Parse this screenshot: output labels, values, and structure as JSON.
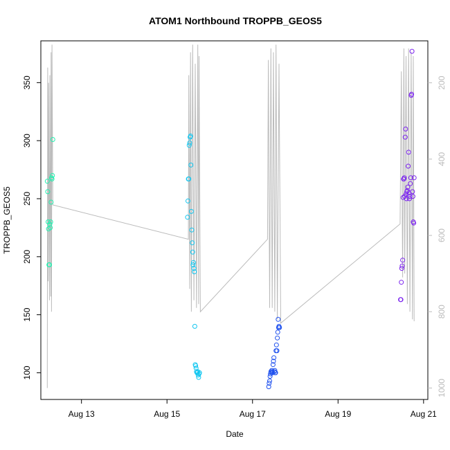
{
  "chart_data": {
    "type": "scatter",
    "title": "ATOM1 Northbound TROPPB_GEOS5",
    "xlabel": "Date",
    "ylabel": "TROPPB_GEOS5",
    "x_range_days": [
      12.05,
      21.1
    ],
    "ylim": [
      77,
      386
    ],
    "x_ticks": [
      {
        "label": "Aug 13",
        "value": 13
      },
      {
        "label": "Aug 15",
        "value": 15
      },
      {
        "label": "Aug 17",
        "value": 17
      },
      {
        "label": "Aug 19",
        "value": 19
      },
      {
        "label": "Aug 21",
        "value": 21
      }
    ],
    "y_ticks": [
      100,
      150,
      200,
      250,
      300,
      350
    ],
    "right_axis": {
      "ticks": [
        200,
        400,
        600,
        800,
        1000
      ],
      "range": [
        90,
        1030
      ],
      "reversed": true,
      "color": "#bbbbbb"
    },
    "altitude_trace": {
      "color": "#bbbbbb",
      "points": [
        [
          12.2,
          1000
        ],
        [
          12.21,
          160
        ],
        [
          12.22,
          720
        ],
        [
          12.23,
          200
        ],
        [
          12.25,
          770
        ],
        [
          12.26,
          180
        ],
        [
          12.28,
          760
        ],
        [
          12.29,
          120
        ],
        [
          12.3,
          800
        ],
        [
          12.31,
          100
        ],
        [
          12.33,
          520
        ],
        [
          15.5,
          610
        ],
        [
          15.51,
          180
        ],
        [
          15.53,
          740
        ],
        [
          15.55,
          120
        ],
        [
          15.57,
          800
        ],
        [
          15.6,
          100
        ],
        [
          15.63,
          770
        ],
        [
          15.66,
          150
        ],
        [
          15.69,
          790
        ],
        [
          15.72,
          100
        ],
        [
          15.74,
          780
        ],
        [
          15.75,
          130
        ],
        [
          15.78,
          800
        ],
        [
          17.35,
          610
        ],
        [
          17.37,
          140
        ],
        [
          17.4,
          790
        ],
        [
          17.43,
          110
        ],
        [
          17.46,
          790
        ],
        [
          17.49,
          120
        ],
        [
          17.52,
          800
        ],
        [
          17.55,
          100
        ],
        [
          17.58,
          820
        ],
        [
          17.62,
          150
        ],
        [
          17.66,
          830
        ],
        [
          20.45,
          570
        ],
        [
          20.48,
          170
        ],
        [
          20.51,
          710
        ],
        [
          20.54,
          110
        ],
        [
          20.56,
          700
        ],
        [
          20.59,
          130
        ],
        [
          20.62,
          780
        ],
        [
          20.65,
          110
        ],
        [
          20.68,
          800
        ],
        [
          20.71,
          120
        ],
        [
          20.74,
          820
        ],
        [
          20.76,
          130
        ],
        [
          20.78,
          825
        ]
      ]
    },
    "series": [
      {
        "color": "#22f0b0",
        "points": [
          [
            12.2,
            265
          ],
          [
            12.21,
            256
          ],
          [
            12.22,
            230
          ],
          [
            12.23,
            224
          ],
          [
            12.24,
            193
          ],
          [
            12.25,
            193
          ],
          [
            12.26,
            228
          ],
          [
            12.27,
            225
          ],
          [
            12.28,
            230
          ],
          [
            12.29,
            247
          ],
          [
            12.3,
            268
          ],
          [
            12.31,
            267
          ],
          [
            12.32,
            270
          ],
          [
            12.33,
            301
          ]
        ]
      },
      {
        "color": "#11c6f0",
        "points": [
          [
            15.48,
            234
          ],
          [
            15.49,
            248
          ],
          [
            15.5,
            267
          ],
          [
            15.51,
            267
          ],
          [
            15.52,
            296
          ],
          [
            15.53,
            298
          ],
          [
            15.54,
            303
          ],
          [
            15.55,
            304
          ],
          [
            15.56,
            279
          ],
          [
            15.57,
            239
          ],
          [
            15.58,
            223
          ],
          [
            15.59,
            212
          ],
          [
            15.6,
            204
          ],
          [
            15.61,
            193
          ],
          [
            15.62,
            195
          ],
          [
            15.63,
            190
          ],
          [
            15.64,
            187
          ],
          [
            15.65,
            140
          ],
          [
            15.66,
            107
          ],
          [
            15.67,
            106
          ],
          [
            15.68,
            104
          ],
          [
            15.69,
            101
          ],
          [
            15.7,
            100
          ],
          [
            15.71,
            100
          ],
          [
            15.72,
            101
          ],
          [
            15.73,
            98
          ],
          [
            15.74,
            96
          ],
          [
            15.75,
            99
          ],
          [
            15.76,
            100
          ]
        ]
      },
      {
        "color": "#1e50ee",
        "points": [
          [
            17.38,
            88
          ],
          [
            17.39,
            91
          ],
          [
            17.4,
            93
          ],
          [
            17.41,
            97
          ],
          [
            17.42,
            99
          ],
          [
            17.43,
            101
          ],
          [
            17.44,
            100
          ],
          [
            17.45,
            102
          ],
          [
            17.46,
            101
          ],
          [
            17.47,
            100
          ],
          [
            17.48,
            107
          ],
          [
            17.49,
            110
          ],
          [
            17.5,
            113
          ],
          [
            17.51,
            101
          ],
          [
            17.52,
            102
          ],
          [
            17.53,
            100
          ],
          [
            17.54,
            100
          ],
          [
            17.55,
            119
          ],
          [
            17.56,
            124
          ],
          [
            17.57,
            119
          ],
          [
            17.58,
            130
          ],
          [
            17.59,
            135
          ],
          [
            17.6,
            146
          ],
          [
            17.61,
            139
          ],
          [
            17.62,
            140
          ],
          [
            17.63,
            139
          ]
        ]
      },
      {
        "color": "#7a22ee",
        "points": [
          [
            20.46,
            163
          ],
          [
            20.47,
            163
          ],
          [
            20.48,
            178
          ],
          [
            20.49,
            190
          ],
          [
            20.5,
            192
          ],
          [
            20.51,
            197
          ],
          [
            20.52,
            251
          ],
          [
            20.53,
            267
          ],
          [
            20.54,
            267
          ],
          [
            20.55,
            268
          ],
          [
            20.56,
            252
          ],
          [
            20.57,
            303
          ],
          [
            20.58,
            310
          ],
          [
            20.59,
            254
          ],
          [
            20.6,
            250
          ],
          [
            20.61,
            256
          ],
          [
            20.62,
            257
          ],
          [
            20.63,
            260
          ],
          [
            20.64,
            278
          ],
          [
            20.65,
            290
          ],
          [
            20.66,
            255
          ],
          [
            20.67,
            250
          ],
          [
            20.68,
            252
          ],
          [
            20.69,
            263
          ],
          [
            20.7,
            268
          ],
          [
            20.71,
            339
          ],
          [
            20.72,
            340
          ],
          [
            20.73,
            377
          ],
          [
            20.74,
            256
          ],
          [
            20.75,
            252
          ],
          [
            20.76,
            230
          ],
          [
            20.77,
            229
          ],
          [
            20.78,
            268
          ]
        ]
      }
    ]
  }
}
